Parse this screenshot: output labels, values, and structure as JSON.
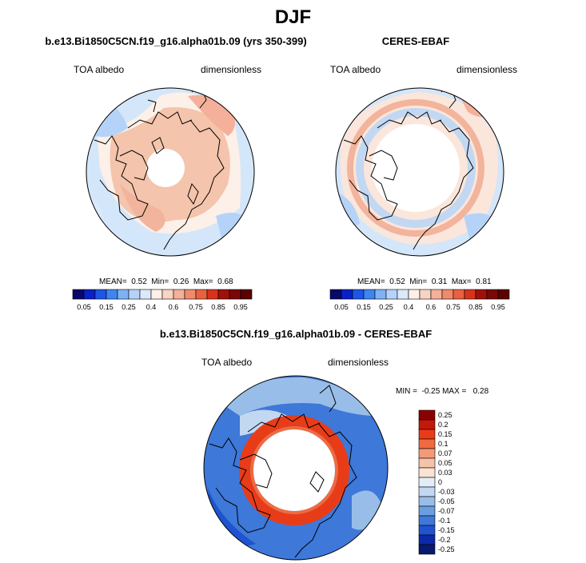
{
  "figure": {
    "season": "DJF"
  },
  "panels": [
    {
      "title": "b.e13.Bi1850C5CN.f19_g16.alpha01b.09 (yrs 350-399)",
      "left_label": "TOA albedo",
      "right_label": "dimensionless",
      "stats": "MEAN=  0.52  Min=  0.26  Max=  0.68"
    },
    {
      "title": "CERES-EBAF",
      "left_label": "TOA albedo",
      "right_label": "dimensionless",
      "stats": "MEAN=  0.52  Min=  0.31  Max=  0.81"
    },
    {
      "title": "b.e13.Bi1850C5CN.f19_g16.alpha01b.09 - CERES-EBAF",
      "left_label": "TOA albedo",
      "right_label": "dimensionless",
      "stats": "MIN =  -0.25 MAX =   0.28"
    }
  ],
  "chart_data": [
    {
      "type": "heatmap",
      "projection": "north-polar-stereographic",
      "title": "b.e13.Bi1850C5CN.f19_g16.alpha01b.09 (yrs 350-399)",
      "variable": "TOA albedo",
      "units": "dimensionless",
      "mean": 0.52,
      "min": 0.26,
      "max": 0.68,
      "colorbar_levels": [
        "0.05",
        "0.15",
        "0.25",
        "0.4",
        "0.6",
        "0.75",
        "0.85",
        "0.95"
      ]
    },
    {
      "type": "heatmap",
      "projection": "north-polar-stereographic",
      "title": "CERES-EBAF",
      "variable": "TOA albedo",
      "units": "dimensionless",
      "mean": 0.52,
      "min": 0.31,
      "max": 0.81,
      "colorbar_levels": [
        "0.05",
        "0.15",
        "0.25",
        "0.4",
        "0.6",
        "0.75",
        "0.85",
        "0.95"
      ]
    },
    {
      "type": "heatmap",
      "projection": "north-polar-stereographic",
      "title": "b.e13.Bi1850C5CN.f19_g16.alpha01b.09 - CERES-EBAF",
      "variable": "TOA albedo",
      "units": "dimensionless",
      "min": -0.25,
      "max": 0.28,
      "colorbar_levels": [
        "0.25",
        "0.2",
        "0.15",
        "0.1",
        "0.07",
        "0.05",
        "0.03",
        "0",
        "-0.03",
        "-0.05",
        "-0.07",
        "-0.1",
        "-0.15",
        "-0.2",
        "-0.25"
      ]
    }
  ],
  "colors": {
    "seq": [
      "#08086b",
      "#0a20c8",
      "#1e55e6",
      "#3d86f0",
      "#7fb2f5",
      "#b5d3f8",
      "#dbe9fa",
      "#fdf0e8",
      "#f8d4c2",
      "#f4b09a",
      "#ef8a6c",
      "#e9623f",
      "#d9321c",
      "#a0100a"
    ],
    "diff": [
      "#8b0000",
      "#c41808",
      "#e83c18",
      "#f06a40",
      "#f49a78",
      "#f7c3a8",
      "#fbe3d4",
      "#e1eefa",
      "#c2d8f2",
      "#98bde8",
      "#6a9ee0",
      "#3e78d8",
      "#1f53cf",
      "#0a2aa8",
      "#081a6e"
    ]
  }
}
